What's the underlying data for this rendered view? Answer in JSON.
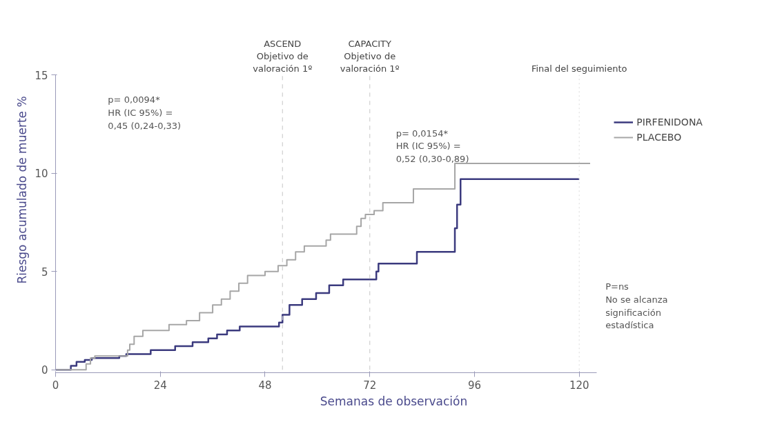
{
  "chart_data": {
    "type": "step",
    "xlabel": "Semanas de observación",
    "ylabel": "Riesgo acumulado de muerte %",
    "xlim": [
      0,
      124
    ],
    "ylim": [
      0,
      15
    ],
    "xticks": [
      0,
      24,
      48,
      72,
      96,
      120
    ],
    "yticks": [
      0,
      5,
      10,
      15
    ],
    "grid": false,
    "legend": "right",
    "series": [
      {
        "name": "PIRFENIDONA",
        "color": "#3b3a7e",
        "x": [
          0,
          3.5,
          4.8,
          6.7,
          8.3,
          14.6,
          16.2,
          21.8,
          27.4,
          31.4,
          35,
          37,
          39.3,
          42.2,
          51.2,
          52,
          53.6,
          56.5,
          59.7,
          62.7,
          65.9,
          73.5,
          74,
          82.8,
          91.5,
          92,
          92.8,
          120
        ],
        "values": [
          0,
          0.2,
          0.4,
          0.5,
          0.6,
          0.7,
          0.8,
          1.0,
          1.2,
          1.4,
          1.6,
          1.8,
          2.0,
          2.2,
          2.4,
          2.8,
          3.3,
          3.6,
          3.9,
          4.3,
          4.6,
          5.0,
          5.4,
          6.0,
          7.2,
          8.4,
          9.7,
          9.7
        ]
      },
      {
        "name": "PLACEBO",
        "color": "#a6a6a6",
        "x": [
          0,
          7,
          8,
          9,
          16.5,
          17,
          18,
          20,
          26,
          30,
          33,
          36,
          38,
          40,
          42,
          44,
          48,
          51,
          53,
          55,
          57,
          62,
          63,
          69,
          70,
          71,
          73,
          75,
          82,
          91.5,
          122.5
        ],
        "values": [
          0,
          0.3,
          0.6,
          0.7,
          1.0,
          1.3,
          1.7,
          2.0,
          2.3,
          2.5,
          2.9,
          3.3,
          3.6,
          4.0,
          4.4,
          4.8,
          5.0,
          5.3,
          5.6,
          6.0,
          6.3,
          6.6,
          6.9,
          7.3,
          7.7,
          7.9,
          8.1,
          8.5,
          9.2,
          10.5,
          10.5
        ]
      }
    ],
    "ref_lines": [
      {
        "axis": "x",
        "value": 52,
        "label": "ASCEND\nObjetivo de\nvaloración 1º",
        "color": "#cfcfcf",
        "line_style": "dashed"
      },
      {
        "axis": "x",
        "value": 72,
        "label": "CAPACITY\nObjetivo de\nvaloración 1º",
        "color": "#cfcfcf",
        "line_style": "dashed"
      },
      {
        "axis": "x",
        "value": 120,
        "label": "Final del seguimiento",
        "color": "#e0e0e0",
        "line_style": "dotted"
      }
    ],
    "annotations": [
      "p= 0,0094*\nHR (IC 95%) =\n0,45 (0,24-0,33)",
      "p= 0,0154*\nHR (IC 95%) =\n0,52 (0,30-0,89)",
      "P=ns\nNo se alcanza\nsignificación\nestadística"
    ]
  }
}
